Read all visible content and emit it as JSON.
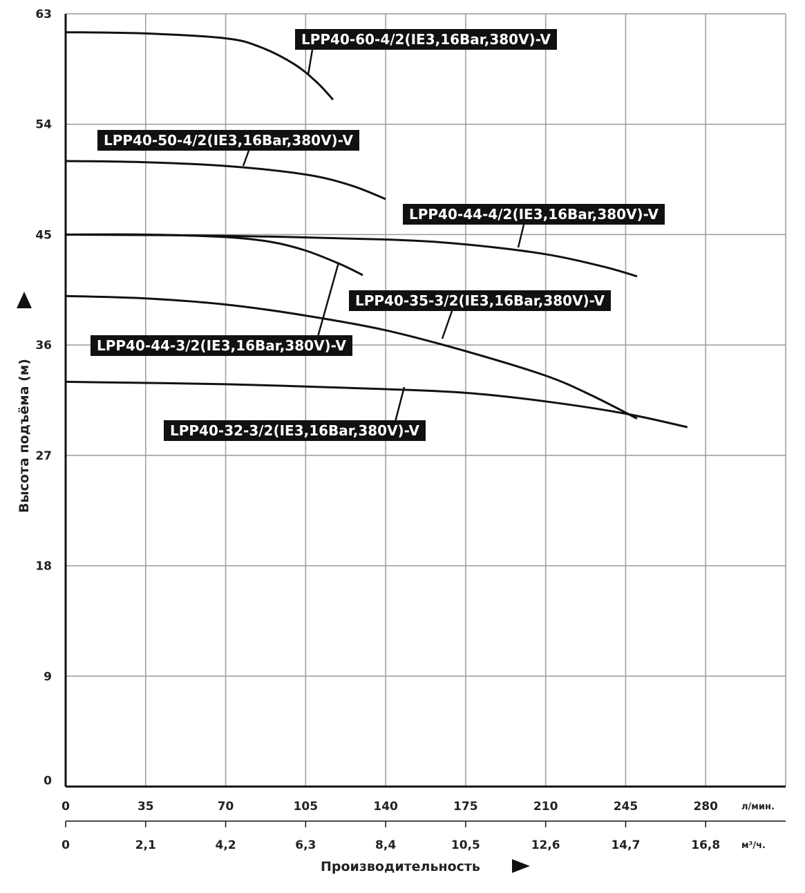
{
  "chart_data": {
    "type": "line",
    "ylabel": "Высота подъёма (м)",
    "xlabel": "Производительность",
    "y_ticks": [
      "0",
      "9",
      "18",
      "27",
      "36",
      "45",
      "54",
      "63"
    ],
    "ylim": [
      0,
      63
    ],
    "x_axis_lmin": {
      "unit": "л/мин.",
      "ticks": [
        "0",
        "35",
        "70",
        "105",
        "140",
        "175",
        "210",
        "245",
        "280"
      ],
      "range": [
        0,
        315
      ]
    },
    "x_axis_m3h": {
      "unit": "м³/ч.",
      "ticks": [
        "0",
        "2,1",
        "4,2",
        "6,3",
        "8,4",
        "10,5",
        "12,6",
        "14,7",
        "16,8"
      ]
    },
    "grid": true,
    "series": [
      {
        "name": "LPP40-60-4/2(IE3,16Bar,380V)-V",
        "points": [
          [
            0,
            61.5
          ],
          [
            35,
            61.4
          ],
          [
            70,
            61.0
          ],
          [
            85,
            60.3
          ],
          [
            100,
            58.9
          ],
          [
            110,
            57.4
          ],
          [
            117,
            56.0
          ]
        ]
      },
      {
        "name": "LPP40-50-4/2(IE3,16Bar,380V)-V",
        "points": [
          [
            0,
            51.0
          ],
          [
            35,
            50.9
          ],
          [
            70,
            50.6
          ],
          [
            105,
            49.9
          ],
          [
            125,
            49.0
          ],
          [
            140,
            47.9
          ]
        ]
      },
      {
        "name": "LPP40-44-4/2(IE3,16Bar,380V)-V",
        "points": [
          [
            0,
            45.0
          ],
          [
            70,
            44.9
          ],
          [
            140,
            44.6
          ],
          [
            175,
            44.2
          ],
          [
            210,
            43.4
          ],
          [
            235,
            42.4
          ],
          [
            250,
            41.6
          ]
        ]
      },
      {
        "name": "LPP40-44-3/2(IE3,16Bar,380V)-V",
        "points": [
          [
            0,
            45.0
          ],
          [
            35,
            45.0
          ],
          [
            70,
            44.8
          ],
          [
            90,
            44.4
          ],
          [
            105,
            43.7
          ],
          [
            120,
            42.6
          ],
          [
            130,
            41.7
          ]
        ]
      },
      {
        "name": "LPP40-35-3/2(IE3,16Bar,380V)-V",
        "points": [
          [
            0,
            40.0
          ],
          [
            35,
            39.8
          ],
          [
            70,
            39.3
          ],
          [
            105,
            38.4
          ],
          [
            140,
            37.2
          ],
          [
            175,
            35.5
          ],
          [
            210,
            33.5
          ],
          [
            230,
            31.9
          ],
          [
            250,
            30.0
          ]
        ]
      },
      {
        "name": "LPP40-32-3/2(IE3,16Bar,380V)-V",
        "points": [
          [
            0,
            33.0
          ],
          [
            70,
            32.8
          ],
          [
            140,
            32.4
          ],
          [
            175,
            32.1
          ],
          [
            210,
            31.4
          ],
          [
            245,
            30.4
          ],
          [
            272,
            29.3
          ]
        ]
      }
    ]
  }
}
